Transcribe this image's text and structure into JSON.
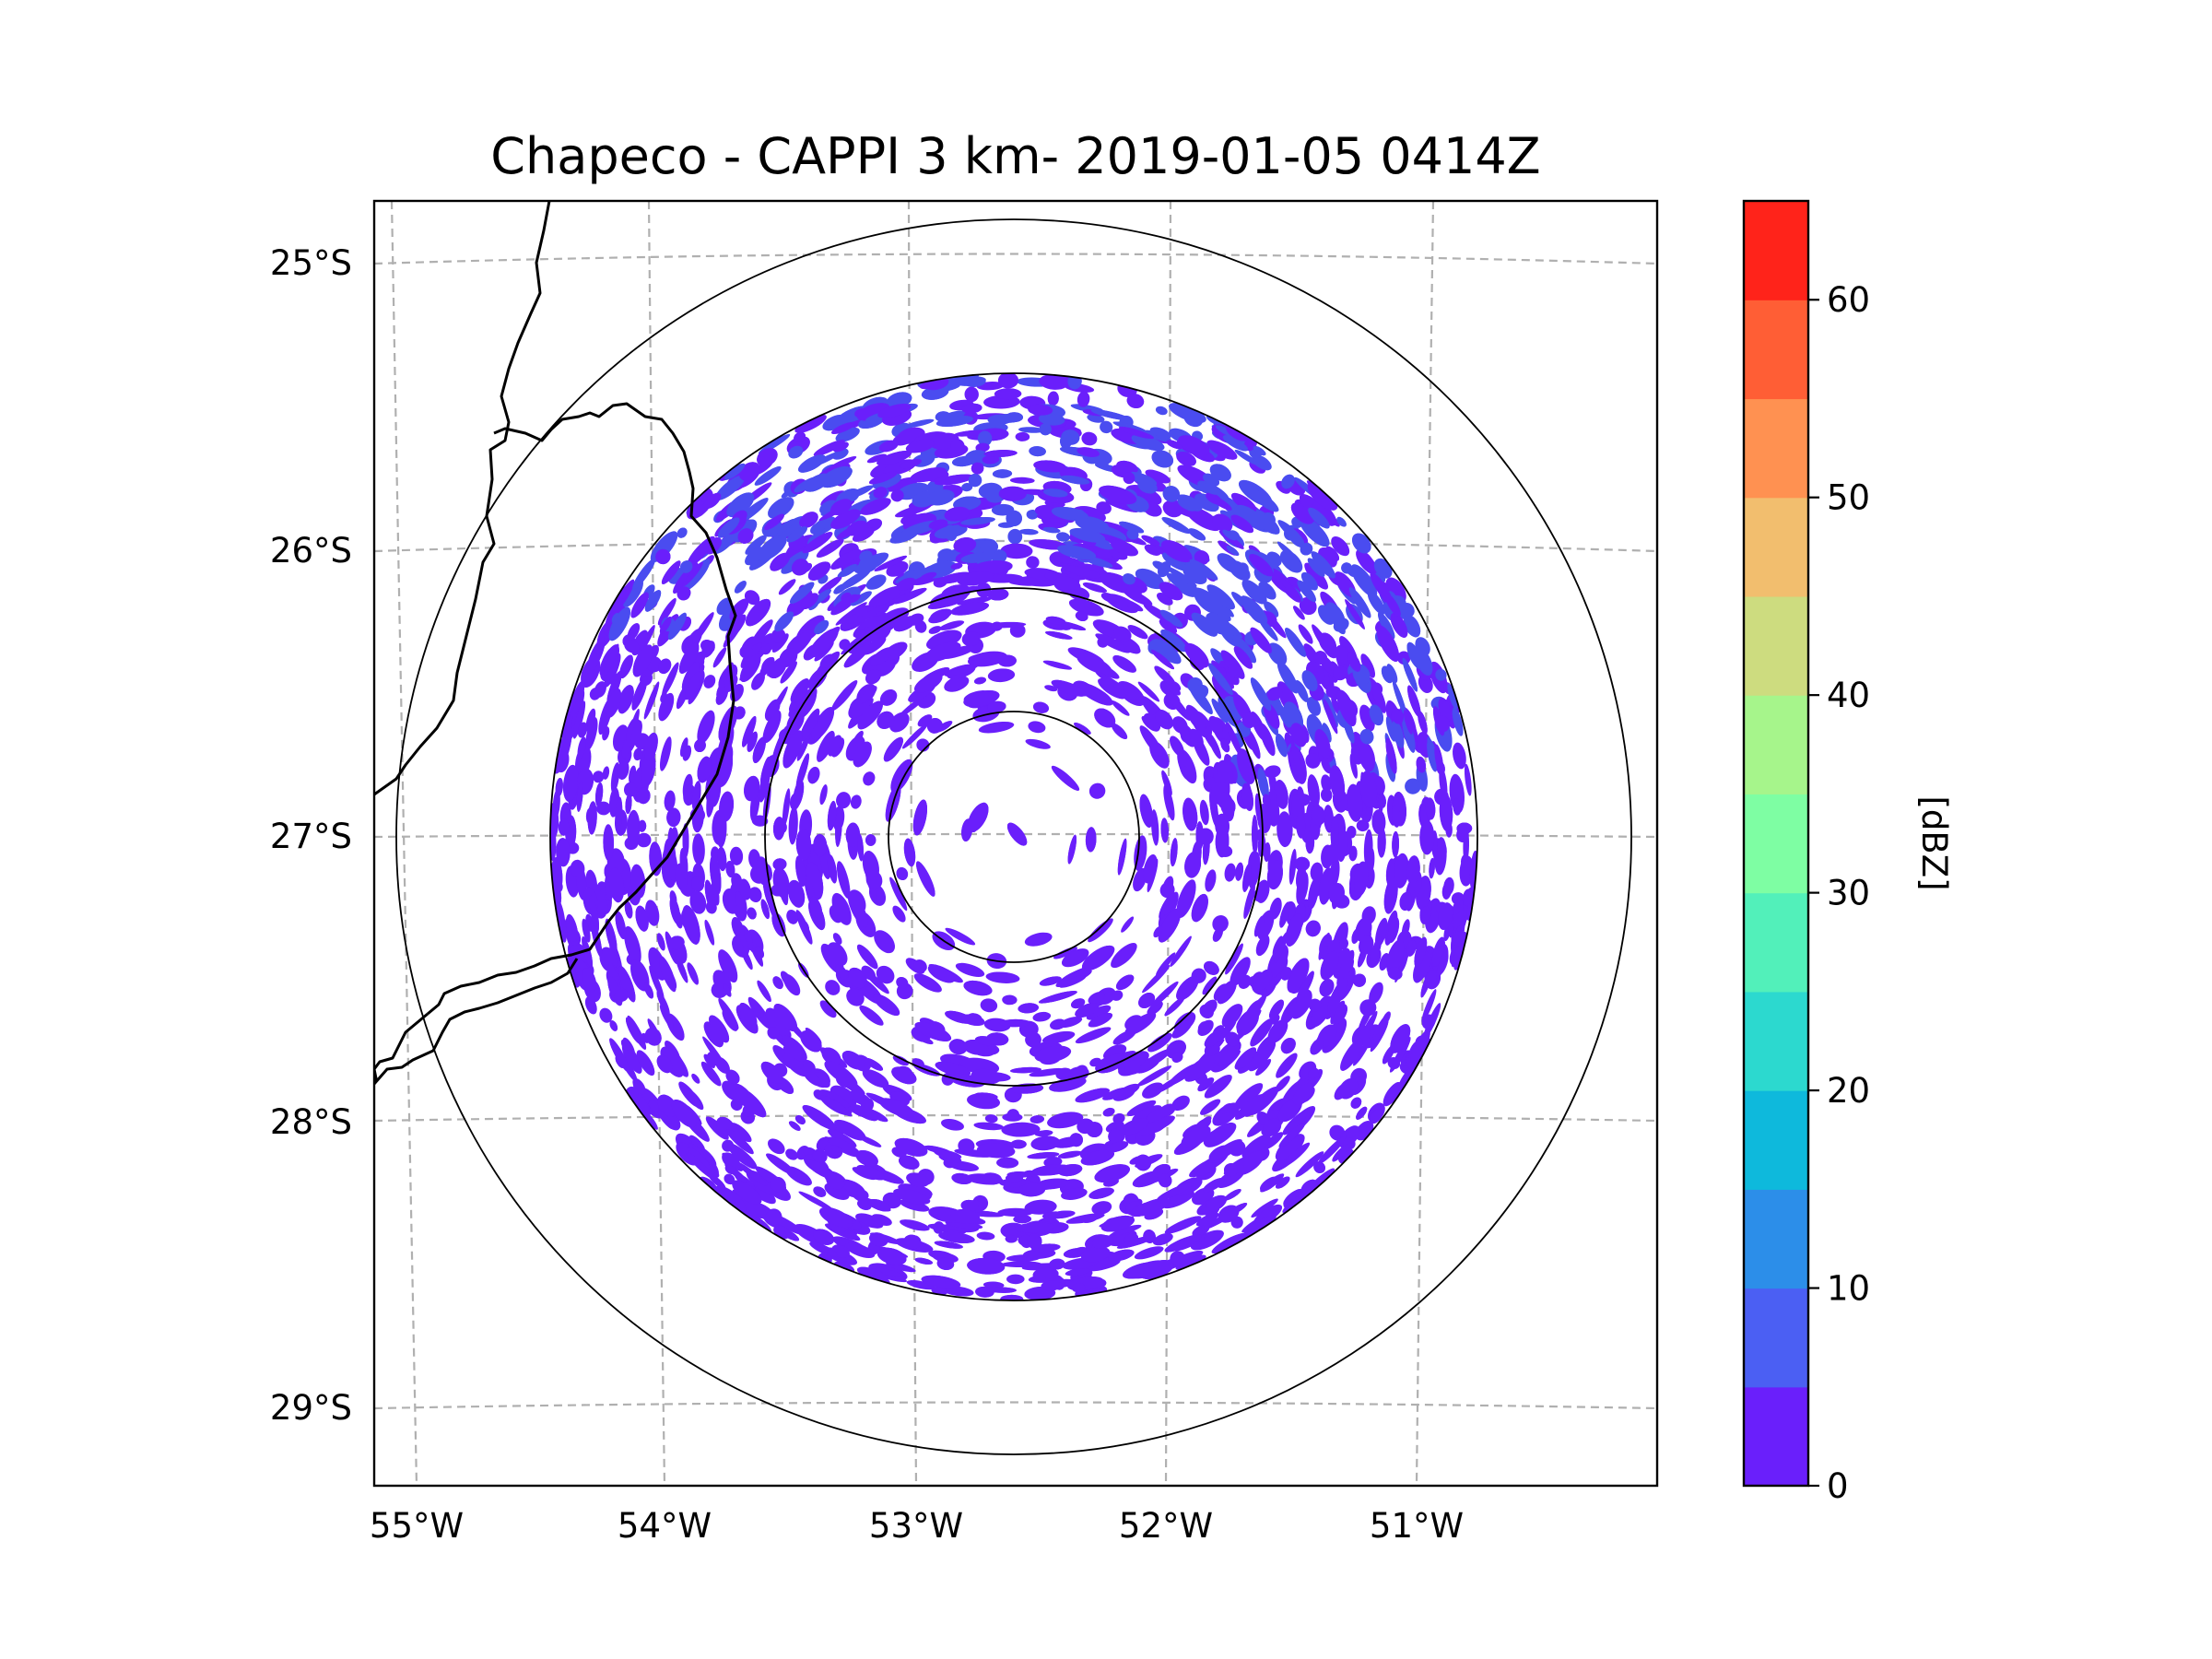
{
  "figure": {
    "title": "Chapeco - CAPPI 3 km- 2019-01-05 0414Z"
  },
  "map": {
    "lon_ticks": [
      "55°W",
      "54°W",
      "53°W",
      "52°W",
      "51°W"
    ],
    "lat_ticks": [
      "25°S",
      "26°S",
      "27°S",
      "28°S",
      "29°S"
    ],
    "gridlines": "dashed",
    "radar_center": {
      "lon": -52.6,
      "lat": -27.0
    },
    "range_rings": 4,
    "echo_color": "#6a1ffb",
    "echo_secondary_color": "#4a4cf0"
  },
  "colorbar": {
    "label": "[dBZ]",
    "tick_labels": [
      "0",
      "10",
      "20",
      "30",
      "40",
      "50",
      "60"
    ],
    "levels_min": 0,
    "levels_max": 65,
    "level_step": 5,
    "colors": [
      "#6a1ffb",
      "#4b5ff3",
      "#2c8ee9",
      "#0eb9dc",
      "#2cd9cf",
      "#52f0ba",
      "#7efea3",
      "#a6f58b",
      "#cddc7f",
      "#f2be6e",
      "#ff9151",
      "#ff5e35",
      "#ff231a"
    ]
  }
}
